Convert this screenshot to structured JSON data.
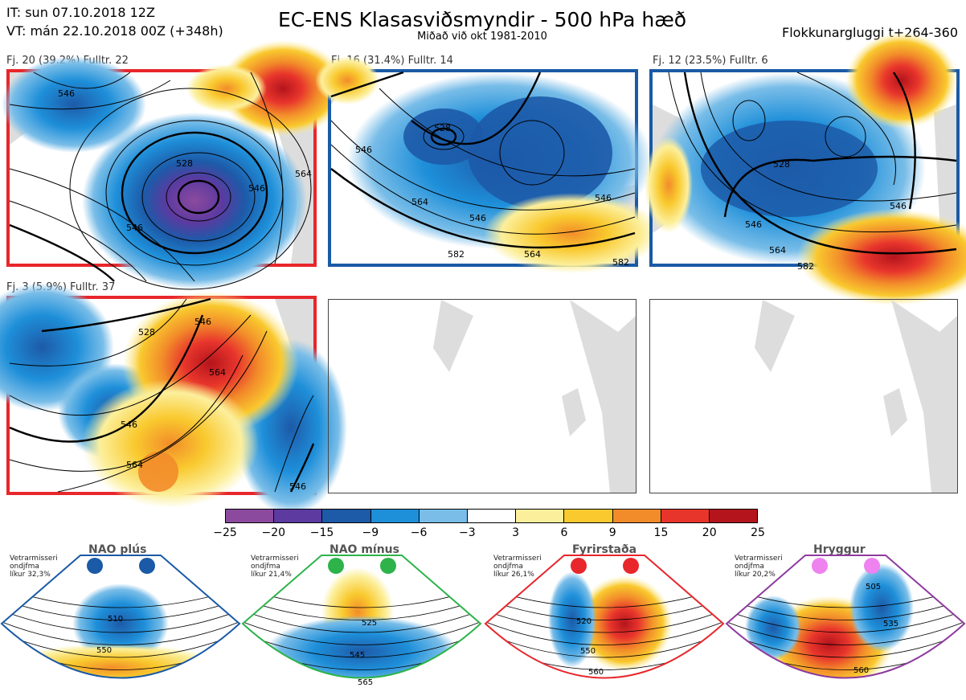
{
  "header": {
    "init_time": "IT: sun 07.10.2018 12Z",
    "valid_time": "VT: mán 22.10.2018 00Z  (+348h)",
    "title": "EC-ENS Klasasviðsmyndir - 500 hPa hæð",
    "subtitle": "Miðað við okt 1981-2010",
    "window": "Flokkunargluggi t+264-360"
  },
  "panels": [
    {
      "label": "Fj. 20 (39.2%)   Fulltr. 22",
      "tag": "CR",
      "border_color": "#e8262b",
      "contour_labels": [
        "546",
        "528",
        "546",
        "546",
        "564"
      ]
    },
    {
      "label": "Fj. 16 (31.4%)   Fulltr. 14",
      "tag": "",
      "border_color": "#1a5aa6",
      "contour_labels": [
        "528",
        "546",
        "546",
        "564",
        "564",
        "582",
        "582",
        "546"
      ]
    },
    {
      "label": "Fj. 12 (23.5%)   Fulltr. 6",
      "tag": "",
      "border_color": "#1a5aa6",
      "contour_labels": [
        "528",
        "546",
        "546",
        "564",
        "582"
      ]
    },
    {
      "label": "Fj. 3 (5.9%)   Fulltr. 37",
      "tag": "",
      "border_color": "#e8262b",
      "contour_labels": [
        "528",
        "546",
        "546",
        "564",
        "564",
        "546"
      ]
    }
  ],
  "colorbar": {
    "colors": [
      "#8c4a9e",
      "#5c3aa0",
      "#1d5aa8",
      "#1e8fd9",
      "#79bde8",
      "#ffffff",
      "#fcef9c",
      "#f9c92e",
      "#f28c2a",
      "#e8352c",
      "#b4141c"
    ],
    "ticks": [
      "−25",
      "−20",
      "−15",
      "−9",
      "−6",
      "−3",
      "3",
      "6",
      "9",
      "15",
      "20",
      "25"
    ]
  },
  "regimes": [
    {
      "name": "NAO plús",
      "color": "#1a5aa6",
      "note": [
        "Vetrarmisseri",
        "ondjfma",
        "líkur 32,3%"
      ],
      "contour_labels": [
        "510",
        "550"
      ]
    },
    {
      "name": "NAO mínus",
      "color": "#2db34a",
      "note": [
        "Vetrarmisseri",
        "ondjfma",
        "líkur 21,4%"
      ],
      "contour_labels": [
        "525",
        "545",
        "565"
      ]
    },
    {
      "name": "Fyrirstaða",
      "color": "#e8262b",
      "note": [
        "Vetrarmisseri",
        "ondjfma",
        "líkur 26,1%"
      ],
      "contour_labels": [
        "520",
        "550",
        "560"
      ]
    },
    {
      "name": "Hryggur",
      "color": "#8e3a9e",
      "dot_color": "#ee82ee",
      "note": [
        "Vetrarmisseri",
        "ondjfma",
        "líkur 20,2%"
      ],
      "contour_labels": [
        "505",
        "535",
        "560"
      ]
    }
  ]
}
